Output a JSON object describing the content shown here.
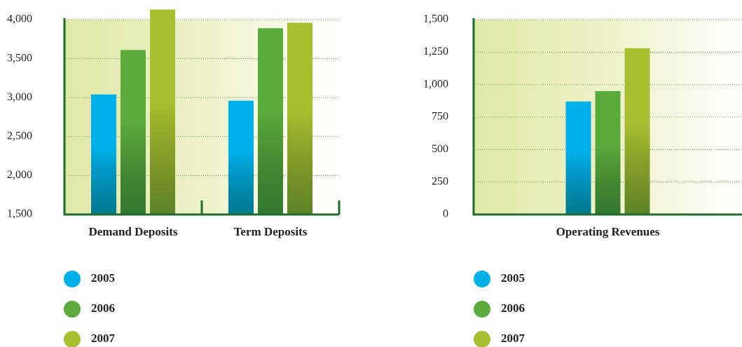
{
  "chart_data": [
    {
      "type": "bar",
      "categories": [
        "Demand Deposits",
        "Term Deposits"
      ],
      "series": [
        {
          "name": "2005",
          "color": "#00b0e8",
          "values": [
            3040,
            2960
          ]
        },
        {
          "name": "2006",
          "color": "#5aaa3c",
          "values": [
            3610,
            3890
          ]
        },
        {
          "name": "2007",
          "color": "#a8c030",
          "values": [
            4130,
            3960
          ]
        }
      ],
      "ylim": [
        1500,
        4000
      ],
      "yticks": [
        {
          "value": 1500,
          "label": "1,500"
        },
        {
          "value": 2000,
          "label": "2,000"
        },
        {
          "value": 2500,
          "label": "2,500"
        },
        {
          "value": 3000,
          "label": "3,000"
        },
        {
          "value": 3500,
          "label": "3,500"
        },
        {
          "value": 4000,
          "label": "4,000"
        }
      ],
      "grid": true
    },
    {
      "type": "bar",
      "categories": [
        "Operating Revenues"
      ],
      "series": [
        {
          "name": "2005",
          "color": "#00b0e8",
          "values": [
            870
          ]
        },
        {
          "name": "2006",
          "color": "#5aaa3c",
          "values": [
            950
          ]
        },
        {
          "name": "2007",
          "color": "#a8c030",
          "values": [
            1280
          ]
        }
      ],
      "ylim": [
        0,
        1500
      ],
      "yticks": [
        0,
        250,
        500,
        750,
        {
          "value": 1000,
          "label": "1,000"
        },
        {
          "value": 1250,
          "label": "1,250"
        },
        {
          "value": 1500,
          "label": "1,500"
        }
      ],
      "grid": true
    }
  ]
}
